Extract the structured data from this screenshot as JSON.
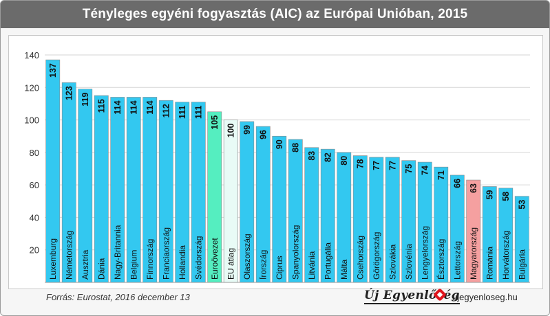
{
  "header": {
    "title": "Tényleges egyéni fogyasztás (AIC) az Európai Unióban, 2015"
  },
  "footer": {
    "source": "Forrás: Eurostat, 2016 december 13",
    "brand": "Új Egyenlőség",
    "site": "ujegyenloseg.hu"
  },
  "colors": {
    "default": "#33c8f0",
    "eurozone": "#55eec0",
    "eu_average": "#e8fbf6",
    "hungary": "#f5a0a0",
    "grid": "#d6d6d6",
    "bar_border": "#888888"
  },
  "chart_data": {
    "type": "bar",
    "title": "Tényleges egyéni fogyasztás (AIC) az Európai Unióban, 2015",
    "xlabel": "",
    "ylabel": "",
    "ylim": [
      0,
      140
    ],
    "yticks": [
      20,
      40,
      60,
      80,
      100,
      120,
      140
    ],
    "grid": true,
    "categories": [
      "Luxemburg",
      "Németország",
      "Ausztria",
      "Dánia",
      "Nagy-Britannia",
      "Belgium",
      "Finnország",
      "Franciaország",
      "Hollandia",
      "Svédország",
      "Euroövezet",
      "EU átlag",
      "Olaszország",
      "Írország",
      "Ciprus",
      "Spanyolország",
      "Litvánia",
      "Portugália",
      "Málta",
      "Csehország",
      "Görögország",
      "Szlovákia",
      "Szlovénia",
      "Lengyelország",
      "Észtország",
      "Lettország",
      "Magyarország",
      "Románia",
      "Horvátország",
      "Bulgária"
    ],
    "values": [
      137,
      123,
      119,
      115,
      114,
      114,
      114,
      112,
      111,
      111,
      105,
      100,
      99,
      96,
      90,
      88,
      83,
      82,
      80,
      78,
      77,
      77,
      75,
      74,
      71,
      66,
      63,
      59,
      58,
      53
    ],
    "highlights": {
      "Euroövezet": "eurozone",
      "EU átlag": "eu_average",
      "Magyarország": "hungary"
    }
  }
}
